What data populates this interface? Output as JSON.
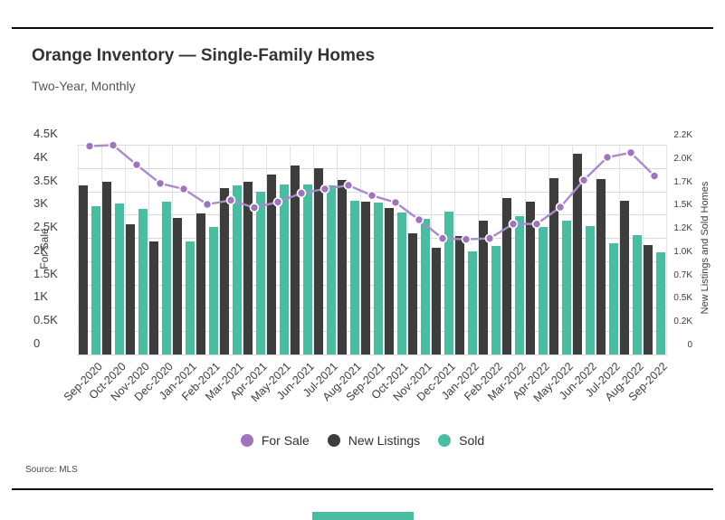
{
  "header": {
    "title": "Orange Inventory — Single-Family Homes",
    "subtitle": "Two-Year, Monthly"
  },
  "footer": {
    "source": "Source: MLS"
  },
  "colors": {
    "for_sale_line": "#a98bca",
    "for_sale_dot": "#9e74ba",
    "new_listings_bar": "#3d3d3d",
    "sold_bar": "#4abda1",
    "gridline": "#d8d8d8",
    "rule": "#0a0a0a"
  },
  "chart_data": {
    "type": "combo-bar-line",
    "grid": "horizontal and vertical, light gray",
    "legend_position": "bottom-center",
    "categories": [
      "Sep-2020",
      "Oct-2020",
      "Nov-2020",
      "Dec-2020",
      "Jan-2021",
      "Feb-2021",
      "Mar-2021",
      "Apr-2021",
      "May-2021",
      "Jun-2021",
      "Jul-2021",
      "Aug-2021",
      "Sep-2021",
      "Oct-2021",
      "Nov-2021",
      "Dec-2021",
      "Jan-2022",
      "Feb-2022",
      "Mar-2022",
      "Apr-2022",
      "May-2022",
      "Jun-2022",
      "Jul-2022",
      "Aug-2022",
      "Sep-2022"
    ],
    "series": [
      {
        "name": "For Sale",
        "type": "line",
        "axis": "left",
        "color": "#9e74ba",
        "line_color": "#a98bca",
        "values": [
          4470,
          4490,
          4070,
          3670,
          3550,
          3220,
          3310,
          3150,
          3270,
          3460,
          3550,
          3630,
          3410,
          3260,
          2890,
          2490,
          2470,
          2490,
          2800,
          2800,
          3160,
          3740,
          4230,
          4330,
          3830
        ]
      },
      {
        "name": "New Listings",
        "type": "bar",
        "axis": "right",
        "color": "#3d3d3d",
        "values": [
          1810,
          1850,
          1400,
          1210,
          1460,
          1510,
          1780,
          1850,
          1930,
          2030,
          2000,
          1870,
          1640,
          1570,
          1300,
          1140,
          1270,
          1440,
          1680,
          1640,
          1890,
          2150,
          1880,
          1650,
          1170
        ]
      },
      {
        "name": "Sold",
        "type": "bar",
        "axis": "right",
        "color": "#4abda1",
        "values": [
          1590,
          1620,
          1560,
          1640,
          1210,
          1370,
          1810,
          1750,
          1820,
          1820,
          1810,
          1650,
          1630,
          1520,
          1450,
          1530,
          1110,
          1160,
          1480,
          1370,
          1440,
          1380,
          1190,
          1280,
          1100
        ]
      }
    ],
    "left_axis": {
      "label": "For Sale",
      "min": 0,
      "max": 4500,
      "tick_labels_top_down": [
        "4.5K",
        "4K",
        "3.5K",
        "3K",
        "2.5K",
        "2K",
        "1.5K",
        "1K",
        "0.5K",
        "0"
      ]
    },
    "right_axis": {
      "label": "New Listings and Sold Homes",
      "min": 0,
      "max": 2250,
      "tick_labels_top_down": [
        "2.2K",
        "2.0K",
        "1.7K",
        "1.5K",
        "1.2K",
        "1.0K",
        "0.7K",
        "0.5K",
        "0.2K",
        "0"
      ]
    }
  }
}
